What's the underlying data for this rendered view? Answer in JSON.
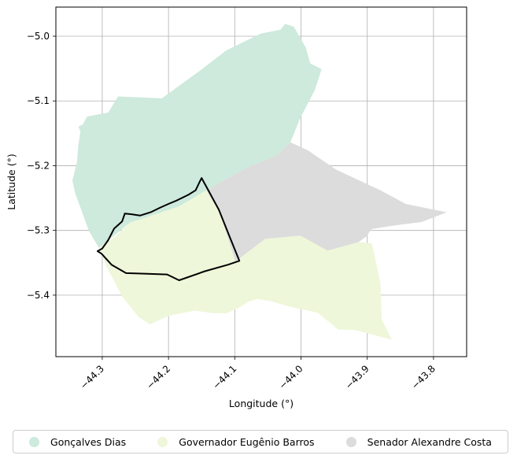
{
  "map": {
    "xlabel": "Longitude (°)",
    "ylabel": "Latitude (°)",
    "xlim": [
      -44.37,
      -43.75
    ],
    "ylim": [
      -5.495,
      -4.955
    ],
    "xticks": [
      -44.3,
      -44.2,
      -44.1,
      -44.0,
      -43.9,
      -43.8
    ],
    "xtick_labels": [
      "−44.3",
      "−44.2",
      "−44.1",
      "−44.0",
      "−43.9",
      "−43.8"
    ],
    "yticks": [
      -5.0,
      -5.1,
      -5.2,
      -5.3,
      -5.4
    ],
    "ytick_labels": [
      "−5.0",
      "−5.1",
      "−5.2",
      "−5.3",
      "−5.4"
    ],
    "grid": true,
    "regions": [
      {
        "name": "Gonçalves Dias",
        "color": "#cdeadc",
        "polygon": [
          [
            -44.329,
            -5.136
          ],
          [
            -44.323,
            -5.124
          ],
          [
            -44.291,
            -5.118
          ],
          [
            -44.276,
            -5.093
          ],
          [
            -44.21,
            -5.096
          ],
          [
            -44.151,
            -5.052
          ],
          [
            -44.113,
            -5.022
          ],
          [
            -44.061,
            -4.996
          ],
          [
            -44.031,
            -4.99
          ],
          [
            -44.024,
            -4.981
          ],
          [
            -44.011,
            -4.985
          ],
          [
            -43.993,
            -5.017
          ],
          [
            -43.986,
            -5.042
          ],
          [
            -43.969,
            -5.051
          ],
          [
            -43.979,
            -5.083
          ],
          [
            -44.001,
            -5.126
          ],
          [
            -44.016,
            -5.164
          ],
          [
            -44.038,
            -5.185
          ],
          [
            -44.084,
            -5.204
          ],
          [
            -44.143,
            -5.238
          ],
          [
            -44.184,
            -5.263
          ],
          [
            -44.258,
            -5.288
          ],
          [
            -44.305,
            -5.327
          ],
          [
            -44.32,
            -5.301
          ],
          [
            -44.33,
            -5.273
          ],
          [
            -44.341,
            -5.242
          ],
          [
            -44.345,
            -5.223
          ],
          [
            -44.338,
            -5.194
          ],
          [
            -44.336,
            -5.168
          ],
          [
            -44.333,
            -5.147
          ],
          [
            -44.336,
            -5.14
          ],
          [
            -44.329,
            -5.136
          ]
        ]
      },
      {
        "name": "Governador Eugênio Barros",
        "color": "#eef7d9",
        "polygon": [
          [
            -44.305,
            -5.327
          ],
          [
            -44.281,
            -5.31
          ],
          [
            -44.258,
            -5.288
          ],
          [
            -44.184,
            -5.263
          ],
          [
            -44.143,
            -5.238
          ],
          [
            -44.122,
            -5.274
          ],
          [
            -44.099,
            -5.348
          ],
          [
            -44.054,
            -5.313
          ],
          [
            -44.001,
            -5.308
          ],
          [
            -43.96,
            -5.331
          ],
          [
            -43.913,
            -5.318
          ],
          [
            -43.893,
            -5.32
          ],
          [
            -43.88,
            -5.382
          ],
          [
            -43.878,
            -5.438
          ],
          [
            -43.863,
            -5.469
          ],
          [
            -43.895,
            -5.46
          ],
          [
            -43.919,
            -5.454
          ],
          [
            -43.944,
            -5.453
          ],
          [
            -43.975,
            -5.427
          ],
          [
            -44.016,
            -5.418
          ],
          [
            -44.047,
            -5.409
          ],
          [
            -44.066,
            -5.406
          ],
          [
            -44.079,
            -5.41
          ],
          [
            -44.093,
            -5.419
          ],
          [
            -44.112,
            -5.428
          ],
          [
            -44.131,
            -5.428
          ],
          [
            -44.161,
            -5.424
          ],
          [
            -44.2,
            -5.432
          ],
          [
            -44.228,
            -5.445
          ],
          [
            -44.245,
            -5.434
          ],
          [
            -44.27,
            -5.402
          ],
          [
            -44.294,
            -5.355
          ],
          [
            -44.305,
            -5.327
          ]
        ]
      },
      {
        "name": "Senador Alexandre Costa",
        "color": "#dcdcdc",
        "polygon": [
          [
            -44.016,
            -5.164
          ],
          [
            -43.99,
            -5.176
          ],
          [
            -43.947,
            -5.206
          ],
          [
            -43.88,
            -5.238
          ],
          [
            -43.842,
            -5.259
          ],
          [
            -43.78,
            -5.272
          ],
          [
            -43.818,
            -5.287
          ],
          [
            -43.857,
            -5.292
          ],
          [
            -43.894,
            -5.298
          ],
          [
            -43.901,
            -5.309
          ],
          [
            -43.913,
            -5.318
          ],
          [
            -43.96,
            -5.331
          ],
          [
            -44.001,
            -5.308
          ],
          [
            -44.054,
            -5.313
          ],
          [
            -44.099,
            -5.348
          ],
          [
            -44.122,
            -5.274
          ],
          [
            -44.143,
            -5.238
          ],
          [
            -44.084,
            -5.204
          ],
          [
            -44.038,
            -5.185
          ],
          [
            -44.016,
            -5.164
          ]
        ]
      }
    ],
    "outline": {
      "color": "#000000",
      "points": [
        [
          -44.15,
          -5.219
        ],
        [
          -44.153,
          -5.225
        ],
        [
          -44.159,
          -5.238
        ],
        [
          -44.17,
          -5.245
        ],
        [
          -44.188,
          -5.254
        ],
        [
          -44.2,
          -5.259
        ],
        [
          -44.213,
          -5.265
        ],
        [
          -44.227,
          -5.272
        ],
        [
          -44.243,
          -5.277
        ],
        [
          -44.256,
          -5.275
        ],
        [
          -44.266,
          -5.274
        ],
        [
          -44.27,
          -5.286
        ],
        [
          -44.282,
          -5.297
        ],
        [
          -44.291,
          -5.315
        ],
        [
          -44.3,
          -5.328
        ],
        [
          -44.307,
          -5.332
        ],
        [
          -44.301,
          -5.336
        ],
        [
          -44.286,
          -5.353
        ],
        [
          -44.264,
          -5.366
        ],
        [
          -44.232,
          -5.367
        ],
        [
          -44.202,
          -5.368
        ],
        [
          -44.184,
          -5.377
        ],
        [
          -44.145,
          -5.363
        ],
        [
          -44.11,
          -5.353
        ],
        [
          -44.093,
          -5.347
        ],
        [
          -44.108,
          -5.309
        ],
        [
          -44.124,
          -5.268
        ],
        [
          -44.141,
          -5.236
        ],
        [
          -44.15,
          -5.219
        ]
      ]
    }
  },
  "legend": {
    "items": [
      {
        "label": "Gonçalves Dias",
        "color": "#cdeadc"
      },
      {
        "label": "Governador Eugênio Barros",
        "color": "#eef7d9"
      },
      {
        "label": "Senador Alexandre Costa",
        "color": "#dcdcdc"
      }
    ]
  }
}
